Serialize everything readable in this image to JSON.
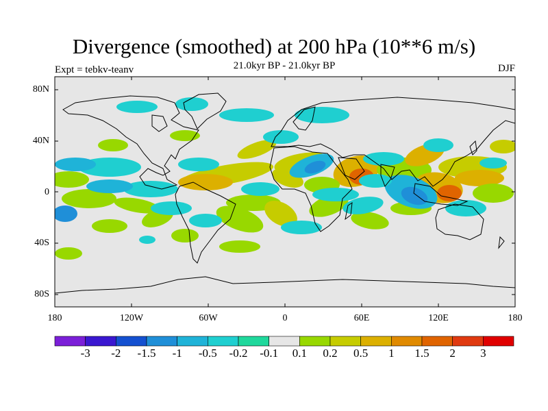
{
  "header": {
    "title": "Divergence (smoothed) at 200 hPa (10**6 m/s)",
    "subtitle": "21.0kyr BP - 21.0kyr BP",
    "experiment": "Expt = tebkv-teanv",
    "season": "DJF"
  },
  "axes": {
    "lat_ticks": [
      "80N",
      "40N",
      "0",
      "40S",
      "80S"
    ],
    "lon_ticks": [
      "180",
      "120W",
      "60W",
      "0",
      "60E",
      "120E",
      "180"
    ]
  },
  "colorbar": {
    "labels": [
      "-3",
      "-2",
      "-1.5",
      "-1",
      "-0.5",
      "-0.2",
      "-0.1",
      "0.1",
      "0.2",
      "0.5",
      "1",
      "1.5",
      "2",
      "3"
    ],
    "colors": [
      "#7b1fd8",
      "#3a17d0",
      "#1450d0",
      "#1f8fd8",
      "#1fb3d8",
      "#1fcfd0",
      "#1fd89c",
      "#e6e6e6",
      "#98d800",
      "#c6cc00",
      "#dcb000",
      "#e08a00",
      "#e06400",
      "#e03a10",
      "#e00000"
    ]
  },
  "map_colors": {
    "background": "#e6e6e6",
    "coast": "#000000"
  }
}
